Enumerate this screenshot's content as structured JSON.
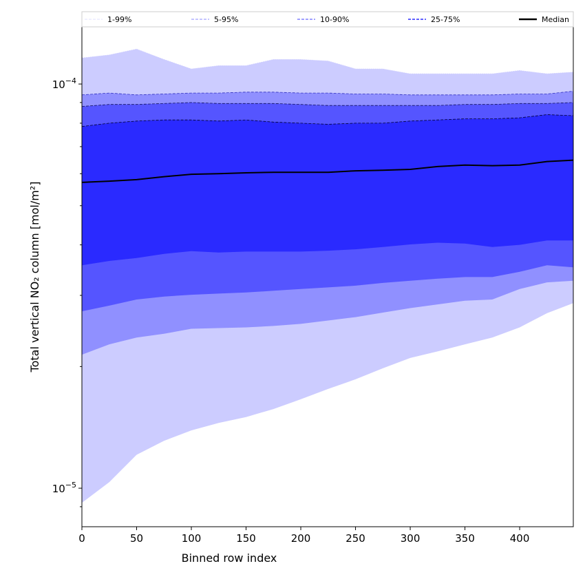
{
  "chart_data": {
    "type": "area",
    "title": "",
    "xlabel": "Binned row index",
    "ylabel": "Total vertical NO₂ column [mol/m²]",
    "yscale": "log",
    "xlim": [
      0,
      449
    ],
    "ylim": [
      8.03e-06,
      0.0001385
    ],
    "value_unit_scale": 0.0001,
    "x": [
      0,
      25,
      50,
      75,
      100,
      125,
      150,
      175,
      200,
      225,
      250,
      275,
      300,
      325,
      350,
      375,
      400,
      425,
      449
    ],
    "x_ticks": [
      0,
      50,
      100,
      150,
      200,
      250,
      300,
      350,
      400
    ],
    "y_ticks": [
      {
        "value": 1e-05,
        "base": "10",
        "exp": "−5"
      },
      {
        "value": 0.0001,
        "base": "10",
        "exp": "−4"
      }
    ],
    "legend_placement": "top",
    "legend": [
      "1-99%",
      "5-95%",
      "10-90%",
      "25-75%",
      "Median"
    ],
    "bands": [
      {
        "name": "1-99%",
        "color": "#ccccff",
        "line": "#d0d0ff",
        "lower": [
          0.092,
          0.1035,
          0.121,
          0.131,
          0.139,
          0.145,
          0.15,
          0.157,
          0.166,
          0.176,
          0.186,
          0.198,
          0.21,
          0.218,
          0.227,
          0.236,
          0.25,
          0.271,
          0.287
        ],
        "upper": [
          1.16,
          1.18,
          1.22,
          1.15,
          1.09,
          1.11,
          1.11,
          1.15,
          1.15,
          1.14,
          1.09,
          1.09,
          1.06,
          1.06,
          1.06,
          1.06,
          1.08,
          1.06,
          1.07
        ]
      },
      {
        "name": "5-95%",
        "color": "#9090ff",
        "line": "#3030c0",
        "lower": [
          0.214,
          0.227,
          0.236,
          0.241,
          0.248,
          0.249,
          0.25,
          0.252,
          0.255,
          0.26,
          0.265,
          0.272,
          0.279,
          0.285,
          0.291,
          0.293,
          0.311,
          0.323,
          0.326
        ],
        "upper": [
          0.94,
          0.95,
          0.94,
          0.945,
          0.95,
          0.95,
          0.955,
          0.955,
          0.95,
          0.95,
          0.945,
          0.945,
          0.94,
          0.94,
          0.94,
          0.94,
          0.945,
          0.945,
          0.96
        ]
      },
      {
        "name": "10-90%",
        "color": "#5555ff",
        "line": "#101060",
        "lower": [
          0.274,
          0.283,
          0.293,
          0.298,
          0.301,
          0.303,
          0.305,
          0.308,
          0.311,
          0.314,
          0.317,
          0.322,
          0.326,
          0.33,
          0.333,
          0.333,
          0.343,
          0.356,
          0.352
        ],
        "upper": [
          0.88,
          0.89,
          0.89,
          0.895,
          0.9,
          0.895,
          0.895,
          0.895,
          0.89,
          0.885,
          0.885,
          0.885,
          0.885,
          0.885,
          0.89,
          0.89,
          0.895,
          0.895,
          0.9
        ]
      },
      {
        "name": "25-75%",
        "color": "#2a2aff",
        "line": "#000030",
        "lower": [
          0.356,
          0.365,
          0.371,
          0.38,
          0.386,
          0.383,
          0.385,
          0.385,
          0.385,
          0.387,
          0.39,
          0.395,
          0.401,
          0.405,
          0.403,
          0.395,
          0.4,
          0.41,
          0.41
        ],
        "upper": [
          0.785,
          0.8,
          0.81,
          0.815,
          0.815,
          0.81,
          0.815,
          0.805,
          0.8,
          0.795,
          0.8,
          0.8,
          0.81,
          0.815,
          0.82,
          0.82,
          0.825,
          0.84,
          0.835
        ]
      }
    ],
    "median": {
      "name": "Median",
      "color": "#000000",
      "values": [
        0.571,
        0.575,
        0.58,
        0.59,
        0.598,
        0.6,
        0.603,
        0.605,
        0.605,
        0.605,
        0.61,
        0.612,
        0.615,
        0.625,
        0.63,
        0.628,
        0.63,
        0.643,
        0.648
      ]
    },
    "legend_line_colors": [
      "#d8d8ff",
      "#a0a0ff",
      "#8080ff",
      "#6060ff",
      "#000000"
    ]
  }
}
